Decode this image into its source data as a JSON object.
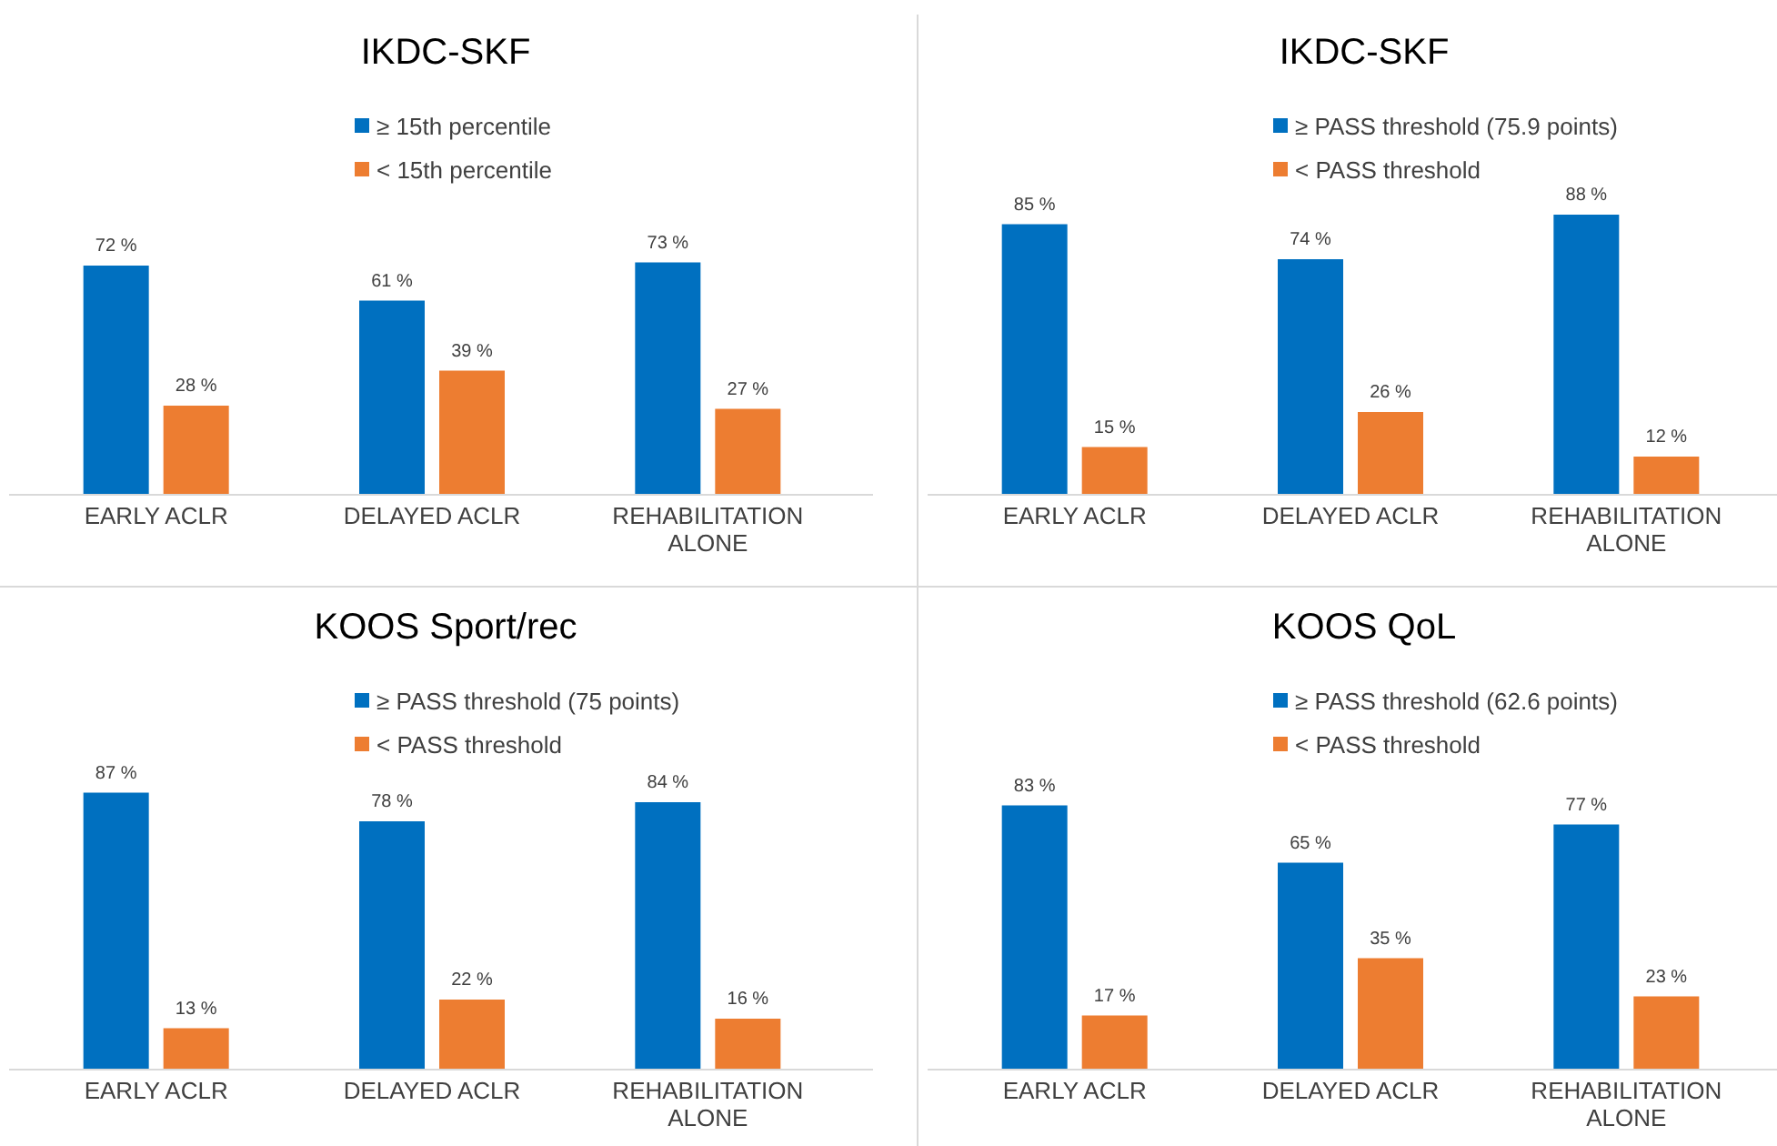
{
  "chart_data": [
    {
      "type": "bar",
      "title": "IKDC-SKF",
      "categories": [
        "EARLY ACLR",
        "DELAYED ACLR",
        "REHABILITATION ALONE"
      ],
      "legend": "top",
      "series": [
        {
          "name": "≥ 15th percentile",
          "color": "#0070c0",
          "values": [
            72,
            61,
            73
          ],
          "value_labels": [
            "72 %",
            "61 %",
            "73 %"
          ]
        },
        {
          "name": "< 15th percentile",
          "color": "#ed7d31",
          "values": [
            28,
            39,
            27
          ],
          "value_labels": [
            "28 %",
            "39 %",
            "27 %"
          ]
        }
      ]
    },
    {
      "type": "bar",
      "title": "IKDC-SKF",
      "categories": [
        "EARLY ACLR",
        "DELAYED ACLR",
        "REHABILITATION ALONE"
      ],
      "legend": "top",
      "series": [
        {
          "name": "≥ PASS threshold (75.9 points)",
          "color": "#0070c0",
          "values": [
            85,
            74,
            88
          ],
          "value_labels": [
            "85 %",
            "74 %",
            "88 %"
          ]
        },
        {
          "name": "< PASS threshold",
          "color": "#ed7d31",
          "values": [
            15,
            26,
            12
          ],
          "value_labels": [
            "15 %",
            "26 %",
            "12 %"
          ]
        }
      ]
    },
    {
      "type": "bar",
      "title": "KOOS Sport/rec",
      "categories": [
        "EARLY ACLR",
        "DELAYED ACLR",
        "REHABILITATION ALONE"
      ],
      "legend": "top",
      "series": [
        {
          "name": "≥ PASS threshold (75 points)",
          "color": "#0070c0",
          "values": [
            87,
            78,
            84
          ],
          "value_labels": [
            "87 %",
            "78 %",
            "84 %"
          ]
        },
        {
          "name": "< PASS threshold",
          "color": "#ed7d31",
          "values": [
            13,
            22,
            16
          ],
          "value_labels": [
            "13 %",
            "22 %",
            "16 %"
          ]
        }
      ]
    },
    {
      "type": "bar",
      "title": "KOOS QoL",
      "categories": [
        "EARLY ACLR",
        "DELAYED ACLR",
        "REHABILITATION ALONE"
      ],
      "legend": "top",
      "series": [
        {
          "name": "≥ PASS threshold (62.6 points)",
          "color": "#0070c0",
          "values": [
            83,
            65,
            77
          ],
          "value_labels": [
            "83 %",
            "65 %",
            "77 %"
          ]
        },
        {
          "name": "< PASS threshold",
          "color": "#ed7d31",
          "values": [
            17,
            35,
            23
          ],
          "value_labels": [
            "17 %",
            "35 %",
            "23 %"
          ]
        }
      ]
    }
  ]
}
